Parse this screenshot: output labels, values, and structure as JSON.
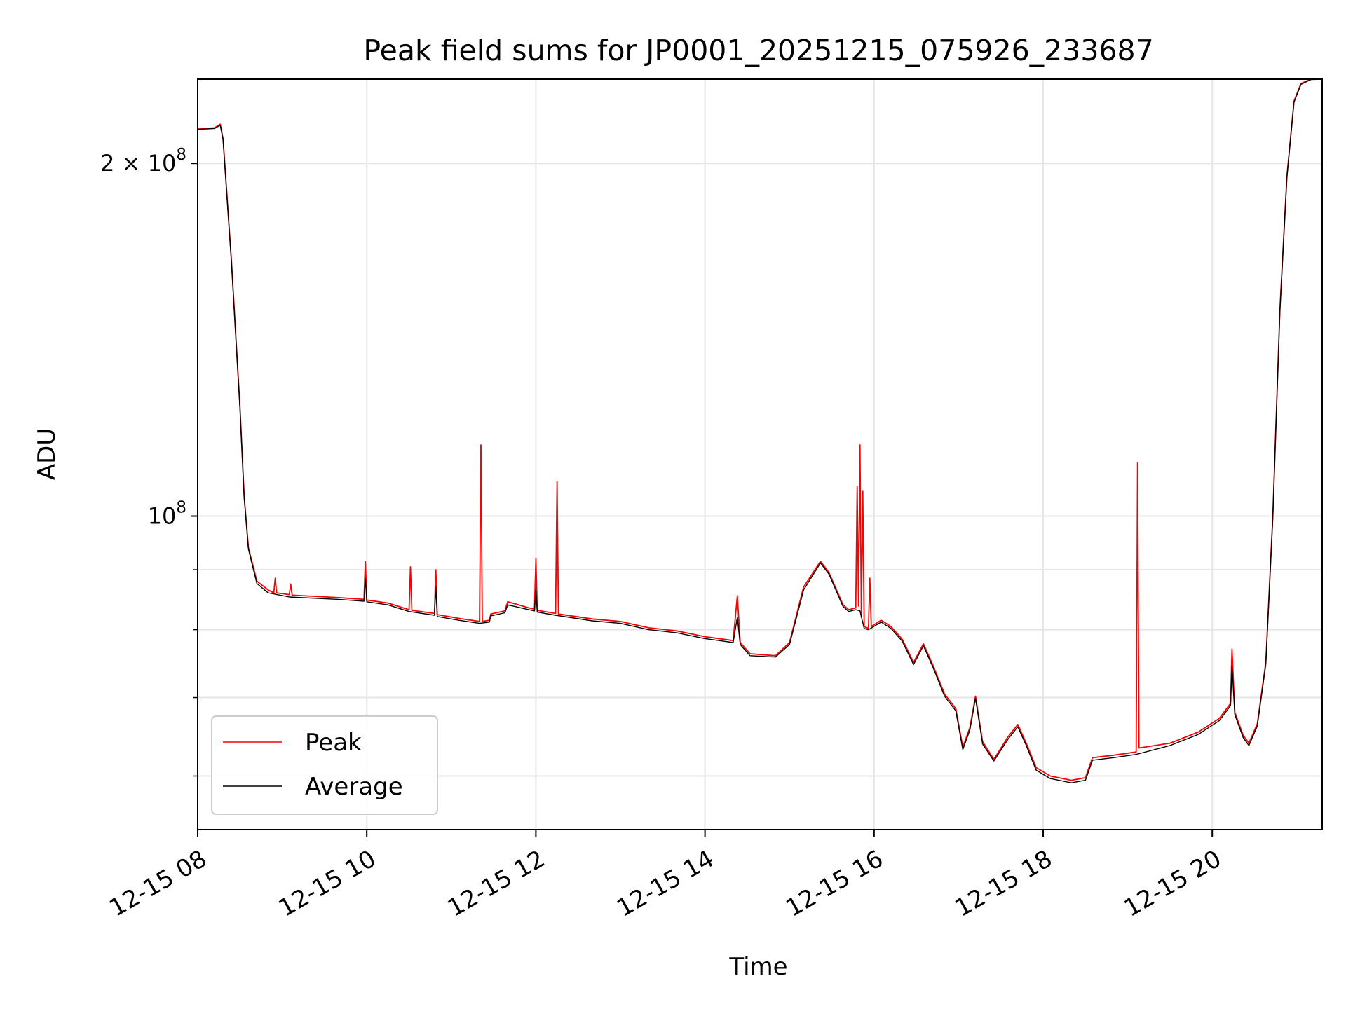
{
  "chart_data": {
    "type": "line",
    "title": "Peak field sums for JP0001_20251215_075926_233687",
    "xlabel": "Time",
    "ylabel": "ADU",
    "y_scale": "log",
    "xlim": [
      "2025-12-15 08:00",
      "2025-12-15 21:18"
    ],
    "ylim": [
      54000000,
      236000000
    ],
    "x_ticks": [
      "12-15 08",
      "12-15 10",
      "12-15 12",
      "12-15 14",
      "12-15 16",
      "12-15 18",
      "12-15 20"
    ],
    "y_ticks_labeled": [
      {
        "value": 200000000,
        "mantissa": "2",
        "times": "×",
        "base": "10",
        "exp": "8"
      },
      {
        "value": 100000000,
        "mantissa": "",
        "times": "",
        "base": "10",
        "exp": "8"
      }
    ],
    "y_ticks_minor": [
      60000000,
      70000000,
      80000000,
      90000000
    ],
    "grid": true,
    "legend_position": "lower-left",
    "colors": {
      "peak": "#ff0000",
      "average": "#000000",
      "grid": "#e6e6e6"
    },
    "series": [
      {
        "name": "Peak",
        "color": "#ff0000",
        "points": [
          [
            "2025-12-15 08:00",
            214000000
          ],
          [
            "2025-12-15 08:12",
            214500000
          ],
          [
            "2025-12-15 08:16",
            216000000
          ],
          [
            "2025-12-15 08:18",
            210000000
          ],
          [
            "2025-12-15 08:24",
            165000000
          ],
          [
            "2025-12-15 08:30",
            124000000
          ],
          [
            "2025-12-15 08:33",
            104000000
          ],
          [
            "2025-12-15 08:36",
            94000000
          ],
          [
            "2025-12-15 08:42",
            88000000
          ],
          [
            "2025-12-15 08:50",
            86500000
          ],
          [
            "2025-12-15 08:54",
            86000000
          ],
          [
            "2025-12-15 08:55",
            88500000
          ],
          [
            "2025-12-15 08:56",
            86000000
          ],
          [
            "2025-12-15 09:05",
            85700000
          ],
          [
            "2025-12-15 09:06",
            87500000
          ],
          [
            "2025-12-15 09:07",
            85600000
          ],
          [
            "2025-12-15 09:40",
            85200000
          ],
          [
            "2025-12-15 09:58",
            84900000
          ],
          [
            "2025-12-15 09:59",
            91500000
          ],
          [
            "2025-12-15 10:00",
            84800000
          ],
          [
            "2025-12-15 10:15",
            84300000
          ],
          [
            "2025-12-15 10:30",
            83200000
          ],
          [
            "2025-12-15 10:31",
            90500000
          ],
          [
            "2025-12-15 10:32",
            83100000
          ],
          [
            "2025-12-15 10:48",
            82600000
          ],
          [
            "2025-12-15 10:49",
            90000000
          ],
          [
            "2025-12-15 10:50",
            82400000
          ],
          [
            "2025-12-15 11:05",
            81800000
          ],
          [
            "2025-12-15 11:20",
            81300000
          ],
          [
            "2025-12-15 11:21",
            115000000
          ],
          [
            "2025-12-15 11:22",
            81300000
          ],
          [
            "2025-12-15 11:27",
            81500000
          ],
          [
            "2025-12-15 11:28",
            82500000
          ],
          [
            "2025-12-15 11:38",
            83000000
          ],
          [
            "2025-12-15 11:40",
            84500000
          ],
          [
            "2025-12-15 11:55",
            83500000
          ],
          [
            "2025-12-15 11:59",
            83300000
          ],
          [
            "2025-12-15 12:00",
            92000000
          ],
          [
            "2025-12-15 12:01",
            83100000
          ],
          [
            "2025-12-15 12:14",
            82600000
          ],
          [
            "2025-12-15 12:15",
            107000000
          ],
          [
            "2025-12-15 12:16",
            82500000
          ],
          [
            "2025-12-15 12:40",
            81700000
          ],
          [
            "2025-12-15 13:00",
            81300000
          ],
          [
            "2025-12-15 13:20",
            80300000
          ],
          [
            "2025-12-15 13:40",
            79800000
          ],
          [
            "2025-12-15 14:00",
            78900000
          ],
          [
            "2025-12-15 14:20",
            78300000
          ],
          [
            "2025-12-15 14:23",
            85500000
          ],
          [
            "2025-12-15 14:25",
            78000000
          ],
          [
            "2025-12-15 14:32",
            76300000
          ],
          [
            "2025-12-15 14:50",
            76000000
          ],
          [
            "2025-12-15 15:00",
            78000000
          ],
          [
            "2025-12-15 15:10",
            87000000
          ],
          [
            "2025-12-15 15:22",
            91500000
          ],
          [
            "2025-12-15 15:28",
            89500000
          ],
          [
            "2025-12-15 15:38",
            84000000
          ],
          [
            "2025-12-15 15:42",
            83200000
          ],
          [
            "2025-12-15 15:47",
            83500000
          ],
          [
            "2025-12-15 15:48",
            106000000
          ],
          [
            "2025-12-15 15:49",
            83800000
          ],
          [
            "2025-12-15 15:50",
            115000000
          ],
          [
            "2025-12-15 15:51",
            82000000
          ],
          [
            "2025-12-15 15:52",
            105000000
          ],
          [
            "2025-12-15 15:53",
            80500000
          ],
          [
            "2025-12-15 15:56",
            80200000
          ],
          [
            "2025-12-15 15:57",
            88500000
          ],
          [
            "2025-12-15 15:58",
            80500000
          ],
          [
            "2025-12-15 16:05",
            81500000
          ],
          [
            "2025-12-15 16:12",
            80500000
          ],
          [
            "2025-12-15 16:20",
            78500000
          ],
          [
            "2025-12-15 16:28",
            75000000
          ],
          [
            "2025-12-15 16:35",
            77800000
          ],
          [
            "2025-12-15 16:42",
            74500000
          ],
          [
            "2025-12-15 16:50",
            70500000
          ],
          [
            "2025-12-15 16:58",
            68500000
          ],
          [
            "2025-12-15 17:03",
            63500000
          ],
          [
            "2025-12-15 17:08",
            66000000
          ],
          [
            "2025-12-15 17:12",
            70200000
          ],
          [
            "2025-12-15 17:17",
            64200000
          ],
          [
            "2025-12-15 17:25",
            62000000
          ],
          [
            "2025-12-15 17:35",
            64800000
          ],
          [
            "2025-12-15 17:42",
            66400000
          ],
          [
            "2025-12-15 17:48",
            64000000
          ],
          [
            "2025-12-15 17:55",
            61000000
          ],
          [
            "2025-12-15 18:05",
            60000000
          ],
          [
            "2025-12-15 18:20",
            59500000
          ],
          [
            "2025-12-15 18:30",
            59800000
          ],
          [
            "2025-12-15 18:35",
            62200000
          ],
          [
            "2025-12-15 18:50",
            62500000
          ],
          [
            "2025-12-15 19:06",
            62900000
          ],
          [
            "2025-12-15 19:07",
            111000000
          ],
          [
            "2025-12-15 19:08",
            63400000
          ],
          [
            "2025-12-15 19:30",
            64000000
          ],
          [
            "2025-12-15 19:50",
            65400000
          ],
          [
            "2025-12-15 20:05",
            67200000
          ],
          [
            "2025-12-15 20:13",
            69200000
          ],
          [
            "2025-12-15 20:14",
            77000000
          ],
          [
            "2025-12-15 20:16",
            68000000
          ],
          [
            "2025-12-15 20:22",
            65000000
          ],
          [
            "2025-12-15 20:26",
            64000000
          ],
          [
            "2025-12-15 20:32",
            66500000
          ],
          [
            "2025-12-15 20:38",
            75000000
          ],
          [
            "2025-12-15 20:43",
            100000000
          ],
          [
            "2025-12-15 20:48",
            150000000
          ],
          [
            "2025-12-15 20:53",
            195000000
          ],
          [
            "2025-12-15 20:58",
            226000000
          ],
          [
            "2025-12-15 21:03",
            234000000
          ],
          [
            "2025-12-15 21:10",
            236000000
          ],
          [
            "2025-12-15 21:18",
            236000000
          ]
        ]
      },
      {
        "name": "Average",
        "color": "#000000",
        "points": [
          [
            "2025-12-15 08:00",
            213800000
          ],
          [
            "2025-12-15 08:12",
            214200000
          ],
          [
            "2025-12-15 08:16",
            215600000
          ],
          [
            "2025-12-15 08:18",
            209500000
          ],
          [
            "2025-12-15 08:24",
            164500000
          ],
          [
            "2025-12-15 08:30",
            123500000
          ],
          [
            "2025-12-15 08:33",
            103700000
          ],
          [
            "2025-12-15 08:36",
            93700000
          ],
          [
            "2025-12-15 08:42",
            87600000
          ],
          [
            "2025-12-15 08:50",
            86000000
          ],
          [
            "2025-12-15 09:05",
            85300000
          ],
          [
            "2025-12-15 09:40",
            84900000
          ],
          [
            "2025-12-15 09:58",
            84600000
          ],
          [
            "2025-12-15 09:59",
            88500000
          ],
          [
            "2025-12-15 10:00",
            84500000
          ],
          [
            "2025-12-15 10:15",
            84000000
          ],
          [
            "2025-12-15 10:30",
            82900000
          ],
          [
            "2025-12-15 10:48",
            82300000
          ],
          [
            "2025-12-15 10:49",
            87000000
          ],
          [
            "2025-12-15 10:50",
            82100000
          ],
          [
            "2025-12-15 11:05",
            81500000
          ],
          [
            "2025-12-15 11:20",
            81000000
          ],
          [
            "2025-12-15 11:27",
            81200000
          ],
          [
            "2025-12-15 11:28",
            82200000
          ],
          [
            "2025-12-15 11:38",
            82700000
          ],
          [
            "2025-12-15 11:40",
            84000000
          ],
          [
            "2025-12-15 11:55",
            83200000
          ],
          [
            "2025-12-15 11:59",
            83000000
          ],
          [
            "2025-12-15 12:00",
            86500000
          ],
          [
            "2025-12-15 12:01",
            82800000
          ],
          [
            "2025-12-15 12:14",
            82300000
          ],
          [
            "2025-12-15 12:40",
            81400000
          ],
          [
            "2025-12-15 13:00",
            81000000
          ],
          [
            "2025-12-15 13:20",
            80000000
          ],
          [
            "2025-12-15 13:40",
            79500000
          ],
          [
            "2025-12-15 14:00",
            78600000
          ],
          [
            "2025-12-15 14:20",
            78000000
          ],
          [
            "2025-12-15 14:23",
            82000000
          ],
          [
            "2025-12-15 14:25",
            77700000
          ],
          [
            "2025-12-15 14:32",
            76000000
          ],
          [
            "2025-12-15 14:50",
            75800000
          ],
          [
            "2025-12-15 15:00",
            77700000
          ],
          [
            "2025-12-15 15:10",
            86500000
          ],
          [
            "2025-12-15 15:22",
            91200000
          ],
          [
            "2025-12-15 15:28",
            89200000
          ],
          [
            "2025-12-15 15:38",
            83700000
          ],
          [
            "2025-12-15 15:42",
            82900000
          ],
          [
            "2025-12-15 15:47",
            83200000
          ],
          [
            "2025-12-15 15:50",
            83000000
          ],
          [
            "2025-12-15 15:53",
            80200000
          ],
          [
            "2025-12-15 15:56",
            80000000
          ],
          [
            "2025-12-15 16:05",
            81200000
          ],
          [
            "2025-12-15 16:12",
            80200000
          ],
          [
            "2025-12-15 16:20",
            78200000
          ],
          [
            "2025-12-15 16:28",
            74700000
          ],
          [
            "2025-12-15 16:35",
            77500000
          ],
          [
            "2025-12-15 16:42",
            74200000
          ],
          [
            "2025-12-15 16:50",
            70200000
          ],
          [
            "2025-12-15 16:58",
            68200000
          ],
          [
            "2025-12-15 17:03",
            63200000
          ],
          [
            "2025-12-15 17:08",
            65700000
          ],
          [
            "2025-12-15 17:12",
            69900000
          ],
          [
            "2025-12-15 17:17",
            63900000
          ],
          [
            "2025-12-15 17:25",
            61800000
          ],
          [
            "2025-12-15 17:35",
            64500000
          ],
          [
            "2025-12-15 17:42",
            66100000
          ],
          [
            "2025-12-15 17:48",
            63700000
          ],
          [
            "2025-12-15 17:55",
            60700000
          ],
          [
            "2025-12-15 18:05",
            59700000
          ],
          [
            "2025-12-15 18:20",
            59200000
          ],
          [
            "2025-12-15 18:30",
            59500000
          ],
          [
            "2025-12-15 18:35",
            61900000
          ],
          [
            "2025-12-15 18:50",
            62200000
          ],
          [
            "2025-12-15 19:06",
            62600000
          ],
          [
            "2025-12-15 19:30",
            63700000
          ],
          [
            "2025-12-15 19:50",
            65100000
          ],
          [
            "2025-12-15 20:05",
            66900000
          ],
          [
            "2025-12-15 20:13",
            68900000
          ],
          [
            "2025-12-15 20:14",
            74500000
          ],
          [
            "2025-12-15 20:16",
            67700000
          ],
          [
            "2025-12-15 20:22",
            64700000
          ],
          [
            "2025-12-15 20:26",
            63700000
          ],
          [
            "2025-12-15 20:32",
            66200000
          ],
          [
            "2025-12-15 20:38",
            74700000
          ],
          [
            "2025-12-15 20:43",
            99700000
          ],
          [
            "2025-12-15 20:48",
            149500000
          ],
          [
            "2025-12-15 20:53",
            194500000
          ],
          [
            "2025-12-15 20:58",
            225500000
          ],
          [
            "2025-12-15 21:03",
            233600000
          ],
          [
            "2025-12-15 21:10",
            235800000
          ],
          [
            "2025-12-15 21:18",
            236000000
          ]
        ]
      }
    ]
  }
}
